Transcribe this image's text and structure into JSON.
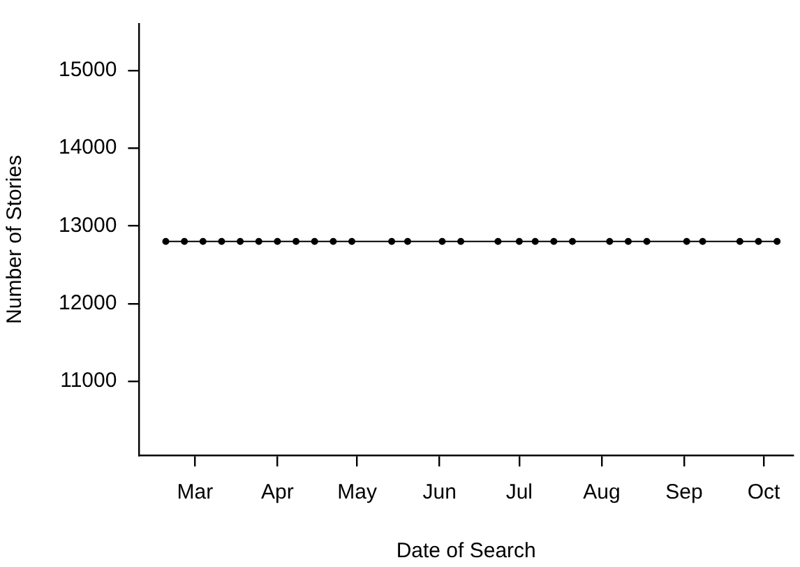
{
  "chart_data": {
    "type": "line",
    "xlabel": "Date of Search",
    "ylabel": "Number of Stories",
    "x": [
      "--02-18",
      "--02-25",
      "--03-04",
      "--03-11",
      "--03-18",
      "--03-25",
      "--04-01",
      "--04-08",
      "--04-15",
      "--04-22",
      "--04-29",
      "--05-14",
      "--05-20",
      "--06-02",
      "--06-09",
      "--06-23",
      "--07-01",
      "--07-07",
      "--07-14",
      "--07-21",
      "--08-04",
      "--08-11",
      "--08-18",
      "--09-02",
      "--09-08",
      "--09-22",
      "--09-29",
      "--10-06"
    ],
    "series": [
      {
        "color": "#000000",
        "values": [
          12800,
          12800,
          12800,
          12800,
          12800,
          12800,
          12800,
          12800,
          12800,
          12800,
          12800,
          12800,
          12800,
          12800,
          12800,
          12800,
          12800,
          12800,
          12800,
          12800,
          12800,
          12800,
          12800,
          12800,
          12800,
          12800,
          12800,
          12800
        ]
      }
    ],
    "xlim": [
      "--02-08",
      "--10-12"
    ],
    "xticks": [
      {
        "value": "--03-01",
        "label": "Mar"
      },
      {
        "value": "--04-01",
        "label": "Apr"
      },
      {
        "value": "--05-01",
        "label": "May"
      },
      {
        "value": "--06-01",
        "label": "Jun"
      },
      {
        "value": "--07-01",
        "label": "Jul"
      },
      {
        "value": "--08-01",
        "label": "Aug"
      },
      {
        "value": "--09-01",
        "label": "Sep"
      },
      {
        "value": "--10-01",
        "label": "Oct"
      }
    ],
    "ylim": [
      10050,
      15600
    ],
    "yticks": [
      11000,
      12000,
      13000,
      14000,
      15000
    ],
    "grid": false,
    "legend": false,
    "marker": "circle",
    "line_style": "solid"
  }
}
